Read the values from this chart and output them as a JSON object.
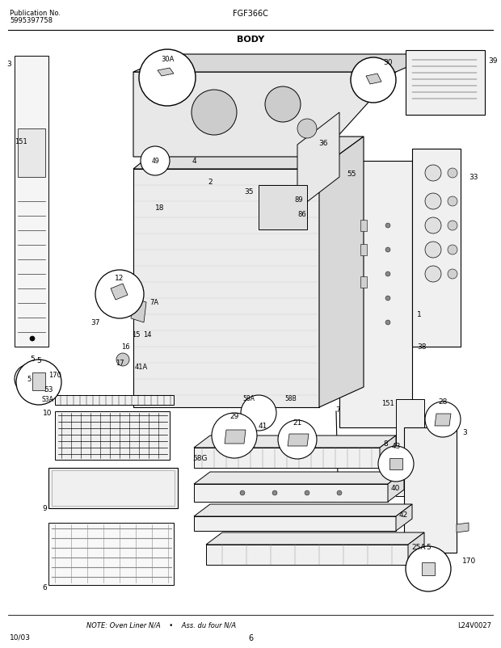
{
  "pub_label": "Publication No.",
  "pub_number": "5995397758",
  "model": "FGF366C",
  "title": "BODY",
  "note_text": "NOTE: Oven Liner N/A    •    Ass. du four N/A",
  "diagram_code": "L24V0027",
  "date": "10/03",
  "page": "6",
  "bg_color": "#ffffff",
  "fig_width": 6.2,
  "fig_height": 8.03,
  "dpi": 100
}
